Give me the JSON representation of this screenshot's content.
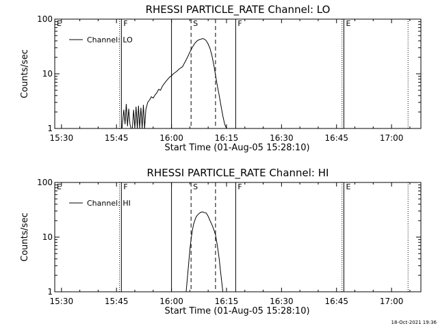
{
  "footer": {
    "timestamp": "18-Oct-2021 19:36"
  },
  "chart_data": [
    {
      "type": "line",
      "title": "RHESSI PARTICLE_RATE Channel: LO",
      "xlabel": "Start Time (01-Aug-05 15:28:10)",
      "ylabel": "Counts/sec",
      "yscale": "log",
      "xlim": [
        "15:28:10",
        "17:08:00"
      ],
      "ylim": [
        1,
        100
      ],
      "x_ticks": [
        "15:30",
        "15:45",
        "16:00",
        "16:15",
        "16:30",
        "16:45",
        "17:00"
      ],
      "y_ticks": [
        "1",
        "10",
        "100"
      ],
      "legend": {
        "placement": "top-left",
        "entry": "Channel: LO"
      },
      "markers": [
        {
          "time": "15:28:10",
          "label": "E",
          "style": "none"
        },
        {
          "time": "15:45:50",
          "label": "",
          "style": "dotted"
        },
        {
          "time": "15:46:20",
          "label": "F",
          "style": "solid"
        },
        {
          "time": "16:00:00",
          "label": "",
          "style": "solid"
        },
        {
          "time": "16:05:20",
          "label": "S",
          "style": "dashed"
        },
        {
          "time": "16:12:00",
          "label": "",
          "style": "dashed"
        },
        {
          "time": "16:17:30",
          "label": "F",
          "style": "solid"
        },
        {
          "time": "16:46:30",
          "label": "",
          "style": "dotted"
        },
        {
          "time": "16:47:00",
          "label": "E",
          "style": "solid"
        },
        {
          "time": "17:04:30",
          "label": "",
          "style": "dotted"
        }
      ],
      "series": [
        {
          "x": [
            "15:46:30",
            "15:47:00",
            "15:47:20",
            "15:47:40",
            "15:48:00",
            "15:48:20",
            "15:48:40",
            "15:49:00",
            "15:49:20",
            "15:49:40",
            "15:50:00",
            "15:50:20",
            "15:50:40",
            "15:51:00",
            "15:51:20",
            "15:51:40",
            "15:52:00",
            "15:52:20",
            "15:52:40",
            "15:53:00",
            "15:53:30",
            "15:54:00",
            "15:54:30",
            "15:55:00",
            "15:55:30",
            "15:56:00",
            "15:56:30",
            "15:57:00",
            "15:57:30",
            "15:58:00",
            "15:58:30",
            "15:59:00",
            "15:59:30",
            "16:00:00",
            "16:00:30",
            "16:01:00",
            "16:01:30",
            "16:02:00",
            "16:02:30",
            "16:03:00",
            "16:03:30",
            "16:04:00",
            "16:04:30",
            "16:05:00",
            "16:05:30",
            "16:06:00",
            "16:06:30",
            "16:07:00",
            "16:07:30",
            "16:08:00",
            "16:08:30",
            "16:09:00",
            "16:09:30",
            "16:10:00",
            "16:10:30",
            "16:11:00",
            "16:11:30",
            "16:12:00",
            "16:12:30",
            "16:13:00",
            "16:13:30",
            "16:14:00",
            "16:14:30",
            "16:15:00"
          ],
          "y": [
            1,
            2.2,
            1.2,
            2.8,
            1.1,
            2.3,
            1.2,
            1,
            1,
            2.2,
            1,
            2.5,
            1,
            2.6,
            1,
            2.4,
            1,
            2.7,
            1,
            2.2,
            3,
            3.3,
            3.8,
            3.6,
            4.1,
            4.5,
            5.2,
            5,
            5.9,
            6.6,
            7.3,
            8,
            8.7,
            9.2,
            10,
            10.6,
            11.2,
            12.1,
            12.8,
            13.5,
            15.5,
            18,
            21,
            25,
            29,
            33,
            37,
            40,
            42,
            43,
            44,
            43,
            40,
            35,
            29,
            22,
            15,
            9.5,
            6,
            4,
            2.6,
            1.7,
            1.2,
            1
          ]
        }
      ]
    },
    {
      "type": "line",
      "title": "RHESSI PARTICLE_RATE Channel: HI",
      "xlabel": "Start Time (01-Aug-05 15:28:10)",
      "ylabel": "Counts/sec",
      "yscale": "log",
      "xlim": [
        "15:28:10",
        "17:08:00"
      ],
      "ylim": [
        1,
        100
      ],
      "x_ticks": [
        "15:30",
        "15:45",
        "16:00",
        "16:15",
        "16:30",
        "16:45",
        "17:00"
      ],
      "y_ticks": [
        "1",
        "10",
        "100"
      ],
      "legend": {
        "placement": "top-left",
        "entry": "Channel: HI"
      },
      "markers": [
        {
          "time": "15:28:10",
          "label": "E",
          "style": "none"
        },
        {
          "time": "15:45:50",
          "label": "",
          "style": "dotted"
        },
        {
          "time": "15:46:20",
          "label": "F",
          "style": "solid"
        },
        {
          "time": "16:00:00",
          "label": "",
          "style": "solid"
        },
        {
          "time": "16:05:20",
          "label": "S",
          "style": "dashed"
        },
        {
          "time": "16:12:00",
          "label": "",
          "style": "dashed"
        },
        {
          "time": "16:17:30",
          "label": "F",
          "style": "solid"
        },
        {
          "time": "16:46:30",
          "label": "",
          "style": "dotted"
        },
        {
          "time": "16:47:00",
          "label": "E",
          "style": "solid"
        },
        {
          "time": "17:04:30",
          "label": "",
          "style": "dotted"
        }
      ],
      "series": [
        {
          "x": [
            "16:04:00",
            "16:04:20",
            "16:04:40",
            "16:05:00",
            "16:05:20",
            "16:05:40",
            "16:06:00",
            "16:06:20",
            "16:06:40",
            "16:07:00",
            "16:07:30",
            "16:08:00",
            "16:08:30",
            "16:09:00",
            "16:09:30",
            "16:10:00",
            "16:10:30",
            "16:11:00",
            "16:11:30",
            "16:12:00",
            "16:12:30",
            "16:13:00",
            "16:13:20",
            "16:13:40",
            "16:14:00"
          ],
          "y": [
            1,
            1.8,
            3.2,
            5.8,
            9.2,
            13,
            17,
            20,
            23,
            25,
            27,
            28.5,
            29,
            28,
            27.5,
            24,
            20,
            17,
            14,
            11,
            7,
            4,
            2.5,
            1.6,
            1
          ]
        }
      ]
    }
  ]
}
